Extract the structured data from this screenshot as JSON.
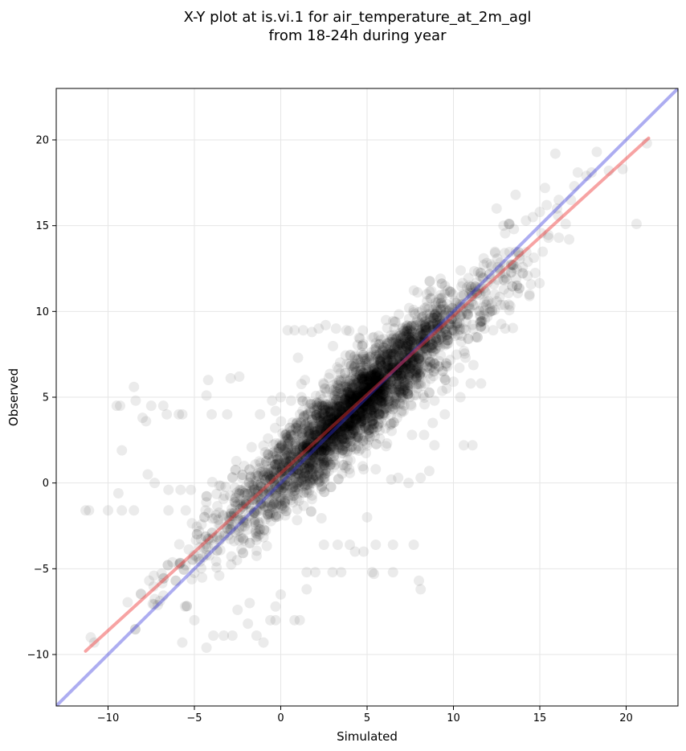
{
  "chart_data": {
    "type": "scatter",
    "title": "X-Y plot at is.vi.1 for air_temperature_at_2m_agl",
    "subtitle": "from 18-24h during year",
    "xlabel": "Simulated",
    "ylabel": "Observed",
    "xlim": [
      -13,
      23
    ],
    "ylim": [
      -13,
      23
    ],
    "x_ticks": [
      -10,
      -5,
      0,
      5,
      10,
      15,
      20
    ],
    "y_ticks": [
      -10,
      -5,
      0,
      5,
      10,
      15,
      20
    ],
    "x_tick_labels": [
      "−10",
      "−5",
      "0",
      "5",
      "10",
      "15",
      "20"
    ],
    "y_tick_labels": [
      "−10",
      "−5",
      "0",
      "5",
      "10",
      "15",
      "20"
    ],
    "grid": true,
    "point_color": "#000000",
    "point_alpha": 0.08,
    "identity_line": {
      "color": "#3333dd",
      "alpha": 0.4,
      "from": [
        -13,
        -13
      ],
      "to": [
        23,
        23
      ]
    },
    "regression_line": {
      "color": "#ee3333",
      "alpha": 0.45,
      "from": [
        -11.3,
        -9.8
      ],
      "to": [
        21.3,
        20.1
      ]
    },
    "series": [
      {
        "values_note_excluded": true,
        "points": [
          [
            -11.3,
            -1.6
          ],
          [
            -11.1,
            -1.6
          ],
          [
            -11.0,
            -9.0
          ],
          [
            -10.8,
            -9.3
          ],
          [
            -10.0,
            -1.6
          ],
          [
            -9.3,
            4.5
          ],
          [
            -9.5,
            4.5
          ],
          [
            -9.2,
            1.9
          ],
          [
            -9.4,
            -0.6
          ],
          [
            -9.2,
            -1.6
          ],
          [
            -8.5,
            5.6
          ],
          [
            -8.4,
            4.8
          ],
          [
            -8.0,
            3.8
          ],
          [
            -7.8,
            3.6
          ],
          [
            -7.5,
            4.5
          ],
          [
            -6.8,
            4.5
          ],
          [
            -6.6,
            4.0
          ],
          [
            -5.9,
            4.0
          ],
          [
            -5.7,
            4.0
          ],
          [
            -4.2,
            6.0
          ],
          [
            -4.3,
            5.1
          ],
          [
            -4.0,
            4.0
          ],
          [
            -3.1,
            4.0
          ],
          [
            -2.9,
            6.1
          ],
          [
            -2.4,
            6.2
          ],
          [
            -7.7,
            0.5
          ],
          [
            -7.3,
            0.0
          ],
          [
            -8.5,
            -1.6
          ],
          [
            -6.5,
            -0.4
          ],
          [
            -5.8,
            -0.4
          ],
          [
            -5.2,
            -0.4
          ],
          [
            -6.5,
            -1.6
          ],
          [
            -5.5,
            -1.6
          ],
          [
            -5.0,
            -8.0
          ],
          [
            -5.7,
            -9.3
          ],
          [
            -4.3,
            -9.6
          ],
          [
            -3.9,
            -8.9
          ],
          [
            -3.3,
            -8.9
          ],
          [
            -2.8,
            -8.9
          ],
          [
            -2.5,
            -7.4
          ],
          [
            -1.9,
            -8.2
          ],
          [
            -1.4,
            -8.9
          ],
          [
            -1.0,
            -9.3
          ],
          [
            -0.6,
            -8.0
          ],
          [
            -0.3,
            -8.0
          ],
          [
            0.8,
            -8.0
          ],
          [
            1.1,
            -8.0
          ],
          [
            -1.8,
            -7.0
          ],
          [
            -0.3,
            -7.2
          ],
          [
            0.0,
            -6.5
          ],
          [
            0.4,
            8.9
          ],
          [
            0.8,
            8.9
          ],
          [
            1.3,
            8.9
          ],
          [
            1.8,
            8.8
          ],
          [
            2.2,
            9.0
          ],
          [
            2.6,
            9.2
          ],
          [
            3.2,
            9.0
          ],
          [
            3.8,
            8.9
          ],
          [
            1.0,
            7.3
          ],
          [
            1.4,
            6.0
          ],
          [
            1.2,
            5.0
          ],
          [
            0.0,
            5.0
          ],
          [
            -0.5,
            4.8
          ],
          [
            0.6,
            4.8
          ],
          [
            -1.2,
            4.0
          ],
          [
            -0.3,
            4.2
          ],
          [
            1.5,
            -5.2
          ],
          [
            2.0,
            -5.2
          ],
          [
            3.0,
            -5.2
          ],
          [
            3.5,
            -5.2
          ],
          [
            1.5,
            -6.2
          ],
          [
            2.5,
            -3.6
          ],
          [
            3.3,
            -3.6
          ],
          [
            4.0,
            -3.6
          ],
          [
            4.3,
            -4.0
          ],
          [
            4.8,
            -4.0
          ],
          [
            5.5,
            -3.6
          ],
          [
            6.5,
            -3.6
          ],
          [
            7.7,
            -3.6
          ],
          [
            8.0,
            -5.7
          ],
          [
            8.1,
            -6.2
          ],
          [
            5.3,
            -5.2
          ],
          [
            5.4,
            -5.3
          ],
          [
            6.5,
            -5.2
          ],
          [
            5.0,
            -2.0
          ],
          [
            5.5,
            0.8
          ],
          [
            4.8,
            0.8
          ],
          [
            6.4,
            0.2
          ],
          [
            6.8,
            0.3
          ],
          [
            7.4,
            0.0
          ],
          [
            8.1,
            0.3
          ],
          [
            8.6,
            0.7
          ],
          [
            8.9,
            2.2
          ],
          [
            7.6,
            2.8
          ],
          [
            8.3,
            2.8
          ],
          [
            8.8,
            3.5
          ],
          [
            9.5,
            4.0
          ],
          [
            8.9,
            4.8
          ],
          [
            9.6,
            5.5
          ],
          [
            10.0,
            5.9
          ],
          [
            10.4,
            5.0
          ],
          [
            11.0,
            5.8
          ],
          [
            11.6,
            5.8
          ],
          [
            10.6,
            2.2
          ],
          [
            11.1,
            2.2
          ],
          [
            10.7,
            7.3
          ],
          [
            11.8,
            9.0
          ],
          [
            12.3,
            8.9
          ],
          [
            13.0,
            9.0
          ],
          [
            13.2,
            10.4
          ],
          [
            14.4,
            10.9
          ],
          [
            14.3,
            12.9
          ],
          [
            15.5,
            14.3
          ],
          [
            16.1,
            14.3
          ],
          [
            16.7,
            14.2
          ],
          [
            16.5,
            15.1
          ],
          [
            16.0,
            16.0
          ],
          [
            15.4,
            16.2
          ],
          [
            15.0,
            15.8
          ],
          [
            14.2,
            15.3
          ],
          [
            13.2,
            15.1
          ],
          [
            13.5,
            14.8
          ],
          [
            12.9,
            15.0
          ],
          [
            12.5,
            16.0
          ],
          [
            13.6,
            16.8
          ],
          [
            14.6,
            15.5
          ],
          [
            16.1,
            16.5
          ],
          [
            16.8,
            16.5
          ],
          [
            17.2,
            18.1
          ],
          [
            17.7,
            17.9
          ],
          [
            18.0,
            18.1
          ],
          [
            18.3,
            19.3
          ],
          [
            19.0,
            18.2
          ],
          [
            19.8,
            18.3
          ],
          [
            20.6,
            15.1
          ],
          [
            21.2,
            19.8
          ],
          [
            15.9,
            19.2
          ],
          [
            15.3,
            17.2
          ],
          [
            17.0,
            17.3
          ]
        ]
      }
    ],
    "dense_cloud": {
      "slope": 0.91,
      "intercept": 0.5,
      "x_min": -9.5,
      "x_max": 17.5,
      "count": 3800
    }
  }
}
